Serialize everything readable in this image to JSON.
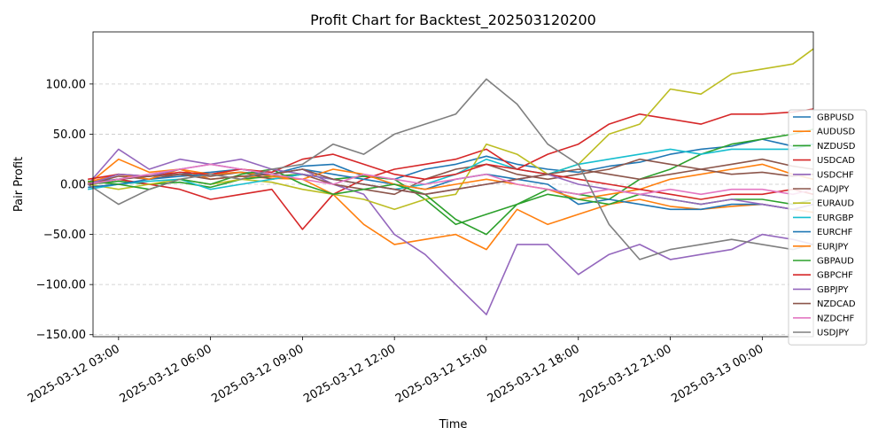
{
  "chart_data": {
    "type": "line",
    "title": "Profit Chart for Backtest_202503120200",
    "xlabel": "Time",
    "ylabel": "Pair Profit",
    "ylim": [
      -152,
      152
    ],
    "xlim": [
      "2025-03-12 02:10",
      "2025-03-13 01:40"
    ],
    "grid": "y-only",
    "legend_position": "right",
    "yticks": [
      -150,
      -100,
      -50,
      0,
      50,
      100
    ],
    "ytick_labels": [
      "−150.00",
      "−100.00",
      "−50.00",
      "0.00",
      "50.00",
      "100.00"
    ],
    "xticks": [
      "2025-03-12 03:00",
      "2025-03-12 06:00",
      "2025-03-12 09:00",
      "2025-03-12 12:00",
      "2025-03-12 15:00",
      "2025-03-12 18:00",
      "2025-03-12 21:00",
      "2025-03-13 00:00"
    ],
    "xtick_labels": [
      "2025-03-12 03:00",
      "2025-03-12 06:00",
      "2025-03-12 09:00",
      "2025-03-12 12:00",
      "2025-03-12 15:00",
      "2025-03-12 18:00",
      "2025-03-12 21:00",
      "2025-03-13 00:00"
    ],
    "x": [
      "2025-03-12 02:00",
      "2025-03-12 03:00",
      "2025-03-12 04:00",
      "2025-03-12 05:00",
      "2025-03-12 06:00",
      "2025-03-12 07:00",
      "2025-03-12 08:00",
      "2025-03-12 09:00",
      "2025-03-12 10:00",
      "2025-03-12 11:00",
      "2025-03-12 12:00",
      "2025-03-12 13:00",
      "2025-03-12 14:00",
      "2025-03-12 15:00",
      "2025-03-12 16:00",
      "2025-03-12 17:00",
      "2025-03-12 18:00",
      "2025-03-12 19:00",
      "2025-03-12 20:00",
      "2025-03-12 21:00",
      "2025-03-12 22:00",
      "2025-03-12 23:00",
      "2025-03-13 00:00",
      "2025-03-13 01:00",
      "2025-03-13 01:40"
    ],
    "series": [
      {
        "name": "GBPUSD",
        "color": "#1f77b4",
        "values": [
          2,
          5,
          8,
          10,
          12,
          15,
          10,
          18,
          20,
          8,
          5,
          15,
          20,
          28,
          20,
          15,
          12,
          18,
          22,
          30,
          35,
          38,
          45,
          38,
          40
        ]
      },
      {
        "name": "AUDUSD",
        "color": "#ff7f0e",
        "values": [
          0,
          25,
          12,
          15,
          5,
          8,
          6,
          5,
          -10,
          -40,
          -60,
          -55,
          -50,
          -65,
          -25,
          -40,
          -30,
          -20,
          -15,
          -22,
          -25,
          -22,
          -20,
          -25,
          -28
        ]
      },
      {
        "name": "NZDUSD",
        "color": "#2ca02c",
        "values": [
          0,
          3,
          0,
          2,
          -3,
          5,
          8,
          10,
          5,
          8,
          5,
          -15,
          -40,
          -30,
          -20,
          -5,
          -10,
          -15,
          5,
          15,
          30,
          40,
          45,
          50,
          55
        ]
      },
      {
        "name": "USDCAD",
        "color": "#d62728",
        "values": [
          0,
          5,
          0,
          -5,
          -15,
          -10,
          -5,
          -45,
          -10,
          5,
          15,
          20,
          25,
          35,
          15,
          30,
          40,
          60,
          70,
          65,
          60,
          70,
          70,
          72,
          75
        ]
      },
      {
        "name": "USDCHF",
        "color": "#9467bd",
        "values": [
          0,
          35,
          15,
          25,
          20,
          15,
          10,
          15,
          0,
          -10,
          -50,
          -70,
          -100,
          -130,
          -60,
          -60,
          -90,
          -70,
          -60,
          -75,
          -70,
          -65,
          -50,
          -55,
          -60
        ]
      },
      {
        "name": "CADJPY",
        "color": "#8c564b",
        "values": [
          0,
          8,
          5,
          10,
          8,
          12,
          5,
          10,
          0,
          -5,
          -10,
          5,
          15,
          20,
          10,
          5,
          10,
          15,
          25,
          20,
          15,
          20,
          25,
          18,
          15
        ]
      },
      {
        "name": "EURAUD",
        "color": "#bcbd22",
        "values": [
          0,
          -5,
          0,
          5,
          0,
          5,
          2,
          -5,
          -10,
          -15,
          -25,
          -15,
          -10,
          40,
          30,
          10,
          20,
          50,
          60,
          95,
          90,
          110,
          115,
          120,
          135
        ]
      },
      {
        "name": "EURGBP",
        "color": "#17becf",
        "values": [
          -5,
          0,
          3,
          5,
          -5,
          0,
          5,
          10,
          5,
          0,
          -5,
          0,
          10,
          25,
          15,
          10,
          20,
          25,
          30,
          35,
          30,
          35,
          35,
          35,
          40
        ]
      },
      {
        "name": "EURCHF",
        "color": "#1f77b4",
        "values": [
          -3,
          0,
          5,
          8,
          10,
          12,
          10,
          15,
          10,
          5,
          0,
          -5,
          5,
          10,
          5,
          0,
          -20,
          -15,
          -20,
          -25,
          -25,
          -20,
          -20,
          -25,
          -20
        ]
      },
      {
        "name": "EURJPY",
        "color": "#ff7f0e",
        "values": [
          2,
          10,
          5,
          15,
          10,
          12,
          8,
          5,
          15,
          10,
          0,
          -5,
          0,
          5,
          0,
          -5,
          -15,
          -10,
          -5,
          5,
          10,
          15,
          20,
          10,
          5
        ]
      },
      {
        "name": "GBPAUD",
        "color": "#2ca02c",
        "values": [
          3,
          0,
          -5,
          5,
          0,
          10,
          15,
          0,
          -10,
          -5,
          0,
          -10,
          -35,
          -50,
          -20,
          -10,
          -15,
          -20,
          -10,
          -15,
          -20,
          -15,
          -15,
          -20,
          -15
        ]
      },
      {
        "name": "GBPCHF",
        "color": "#d62728",
        "values": [
          5,
          10,
          8,
          12,
          10,
          15,
          12,
          25,
          30,
          20,
          10,
          5,
          10,
          20,
          15,
          10,
          5,
          0,
          -5,
          -10,
          -15,
          -10,
          -10,
          -5,
          -10
        ]
      },
      {
        "name": "GBPJPY",
        "color": "#9467bd",
        "values": [
          0,
          10,
          8,
          15,
          20,
          25,
          15,
          10,
          5,
          0,
          -5,
          -10,
          -5,
          0,
          5,
          10,
          0,
          -5,
          -10,
          -15,
          -20,
          -15,
          -20,
          -25,
          -20
        ]
      },
      {
        "name": "NZDCAD",
        "color": "#8c564b",
        "values": [
          0,
          5,
          8,
          10,
          5,
          8,
          10,
          15,
          5,
          0,
          -5,
          -10,
          -5,
          0,
          5,
          10,
          15,
          10,
          5,
          10,
          15,
          10,
          12,
          8,
          10
        ]
      },
      {
        "name": "NZDCHF",
        "color": "#e377c2",
        "values": [
          0,
          5,
          10,
          15,
          20,
          15,
          10,
          5,
          0,
          10,
          5,
          0,
          5,
          10,
          0,
          -5,
          -10,
          -5,
          -10,
          -5,
          -10,
          -5,
          -5,
          -10,
          -5
        ]
      },
      {
        "name": "USDJPY",
        "color": "#7f7f7f",
        "values": [
          0,
          -20,
          -5,
          5,
          10,
          5,
          15,
          20,
          40,
          30,
          50,
          60,
          70,
          105,
          80,
          40,
          20,
          -40,
          -75,
          -65,
          -60,
          -55,
          -60,
          -65,
          -60
        ]
      }
    ]
  }
}
